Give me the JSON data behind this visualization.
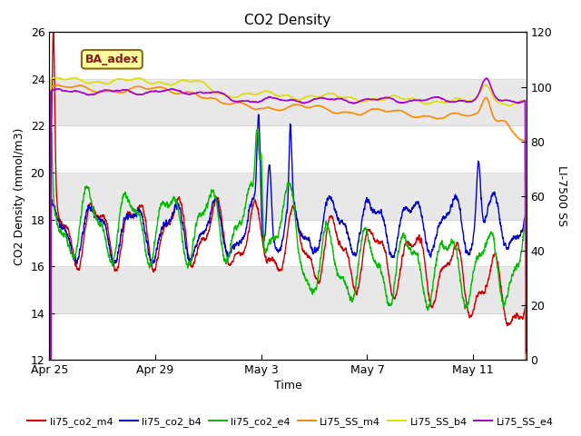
{
  "title": "CO2 Density",
  "xlabel": "Time",
  "ylabel_left": "CO2 Density (mmol/m3)",
  "ylabel_right": "LI-7500 SS",
  "ylim_left": [
    12,
    26
  ],
  "ylim_right": [
    0,
    120
  ],
  "annotation": "BA_adex",
  "series_colors": {
    "co2_m4": "#cc0000",
    "co2_b4": "#0000cc",
    "co2_e4": "#00bb00",
    "SS_m4": "#ff8800",
    "SS_b4": "#dddd00",
    "SS_e4": "#aa00cc"
  },
  "xtick_labels": [
    "Apr 25",
    "Apr 29",
    "May 3",
    "May 7",
    "May 11"
  ],
  "xtick_positions": [
    0,
    4,
    8,
    12,
    16
  ],
  "yticks_left": [
    12,
    14,
    16,
    18,
    20,
    22,
    24,
    26
  ],
  "yticks_right": [
    0,
    20,
    40,
    60,
    80,
    100,
    120
  ],
  "band_colors": [
    "#ffffff",
    "#e8e8e8"
  ],
  "figsize": [
    6.4,
    4.8
  ],
  "dpi": 100
}
